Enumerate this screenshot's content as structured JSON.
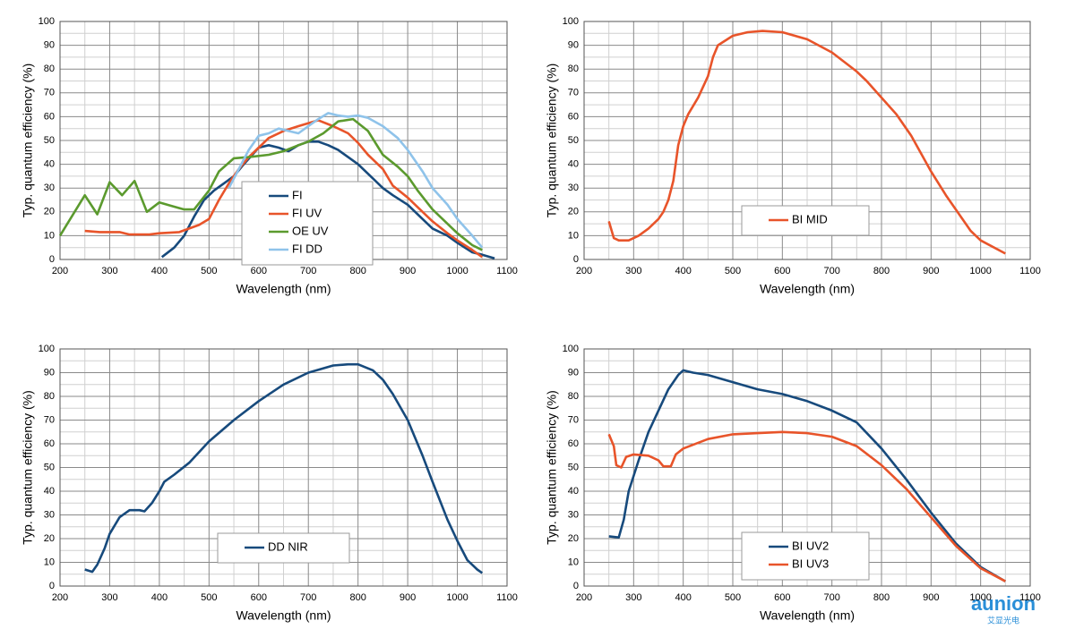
{
  "chart_data": [
    {
      "type": "line",
      "xlabel": "Wavelength (nm)",
      "ylabel": "Typ. quantum efficiency (%)",
      "xlim": [
        200,
        1100
      ],
      "ylim": [
        0,
        100
      ],
      "xticks": [
        200,
        300,
        400,
        500,
        600,
        700,
        800,
        900,
        1000,
        1100
      ],
      "yticks": [
        0,
        10,
        20,
        30,
        40,
        50,
        60,
        70,
        80,
        90,
        100
      ],
      "grid": true,
      "minor_grid": true,
      "legend": "lower right",
      "series": [
        {
          "name": "FI",
          "color": "#174a7c",
          "x": [
            405,
            430,
            450,
            470,
            490,
            510,
            530,
            550,
            570,
            600,
            620,
            640,
            660,
            680,
            700,
            720,
            740,
            760,
            780,
            800,
            820,
            850,
            870,
            900,
            930,
            950,
            980,
            1000,
            1030,
            1050,
            1075
          ],
          "values": [
            1,
            5,
            10,
            18,
            25,
            29,
            32,
            35,
            40,
            47,
            48,
            47,
            45.5,
            48,
            49.5,
            49.5,
            48,
            46,
            43,
            40,
            36,
            30,
            27,
            23,
            17,
            13,
            10,
            7,
            3,
            2,
            0.5
          ]
        },
        {
          "name": "FI UV",
          "color": "#e8542a",
          "x": [
            250,
            280,
            320,
            340,
            380,
            400,
            440,
            460,
            480,
            500,
            520,
            540,
            560,
            580,
            600,
            620,
            650,
            680,
            720,
            750,
            780,
            800,
            820,
            850,
            870,
            900,
            930,
            950,
            980,
            1000,
            1030,
            1050
          ],
          "values": [
            12,
            11.5,
            11.5,
            10.5,
            10.5,
            11,
            11.5,
            13,
            14.5,
            17,
            25,
            32,
            38,
            43,
            47,
            51,
            54,
            56,
            58.5,
            56,
            53,
            49,
            44,
            38,
            31,
            26,
            20,
            16,
            11,
            8,
            4,
            1
          ]
        },
        {
          "name": "OE UV",
          "color": "#5b9a2e",
          "x": [
            200,
            250,
            275,
            300,
            325,
            350,
            375,
            400,
            425,
            450,
            470,
            500,
            520,
            550,
            580,
            620,
            650,
            680,
            700,
            730,
            760,
            790,
            820,
            850,
            880,
            900,
            920,
            950,
            980,
            1000,
            1030,
            1050
          ],
          "values": [
            10,
            27,
            19,
            32.5,
            27,
            33,
            20,
            24,
            22.5,
            21,
            21,
            29,
            37,
            42.5,
            43,
            44,
            45.5,
            48,
            49.5,
            53,
            58,
            59,
            54,
            44,
            39,
            35,
            29,
            21,
            15,
            11,
            6,
            4
          ]
        },
        {
          "name": "FI DD",
          "color": "#8fc3ea",
          "x": [
            540,
            560,
            580,
            600,
            620,
            640,
            660,
            680,
            700,
            720,
            740,
            760,
            780,
            800,
            820,
            850,
            880,
            900,
            930,
            950,
            980,
            1000,
            1030,
            1050
          ],
          "values": [
            30,
            38,
            46,
            52,
            53,
            55,
            54,
            53,
            56,
            59,
            61.5,
            60.5,
            60,
            60.5,
            59.5,
            56,
            51,
            46,
            37,
            30,
            23,
            17,
            10,
            5
          ]
        }
      ]
    },
    {
      "type": "line",
      "xlabel": "Wavelength (nm)",
      "ylabel": "Typ. quantum efficiency (%)",
      "xlim": [
        200,
        1100
      ],
      "ylim": [
        0,
        100
      ],
      "xticks": [
        200,
        300,
        400,
        500,
        600,
        700,
        800,
        900,
        1000,
        1100
      ],
      "yticks": [
        0,
        10,
        20,
        30,
        40,
        50,
        60,
        70,
        80,
        90,
        100
      ],
      "grid": true,
      "minor_grid": true,
      "legend": "lower right",
      "series": [
        {
          "name": "BI MID",
          "color": "#e8542a",
          "x": [
            250,
            260,
            270,
            290,
            310,
            330,
            350,
            360,
            370,
            380,
            390,
            400,
            410,
            430,
            450,
            460,
            470,
            500,
            530,
            560,
            600,
            650,
            700,
            750,
            770,
            800,
            830,
            860,
            900,
            930,
            960,
            980,
            1000,
            1050
          ],
          "values": [
            16,
            9,
            8,
            8,
            10,
            13,
            17,
            20,
            25,
            33,
            48,
            56,
            61,
            68,
            77,
            85,
            90,
            94,
            95.5,
            96,
            95.5,
            92.5,
            87,
            79,
            75,
            68,
            61,
            52,
            37,
            27,
            18,
            12,
            8,
            2.5
          ]
        }
      ]
    },
    {
      "type": "line",
      "xlabel": "Wavelength (nm)",
      "ylabel": "Typ. quantum efficiency (%)",
      "xlim": [
        200,
        1100
      ],
      "ylim": [
        0,
        100
      ],
      "xticks": [
        200,
        300,
        400,
        500,
        600,
        700,
        800,
        900,
        1000,
        1100
      ],
      "yticks": [
        0,
        10,
        20,
        30,
        40,
        50,
        60,
        70,
        80,
        90,
        100
      ],
      "grid": true,
      "minor_grid": true,
      "legend": "lower center",
      "series": [
        {
          "name": "DD NIR",
          "color": "#174a7c",
          "x": [
            250,
            265,
            275,
            290,
            300,
            320,
            340,
            360,
            370,
            385,
            400,
            410,
            430,
            460,
            500,
            550,
            600,
            650,
            700,
            750,
            780,
            800,
            830,
            850,
            870,
            900,
            930,
            950,
            980,
            1000,
            1020,
            1040,
            1050
          ],
          "values": [
            7,
            6,
            9,
            16,
            22,
            29,
            32,
            32,
            31.5,
            35,
            40,
            44,
            47,
            52,
            61,
            70,
            78,
            85,
            90,
            93,
            93.5,
            93.5,
            91,
            87,
            81,
            70,
            55,
            44,
            28,
            19,
            11,
            7,
            5.5
          ]
        }
      ]
    },
    {
      "type": "line",
      "xlabel": "Wavelength (nm)",
      "ylabel": "Typ. quantum efficiency (%)",
      "xlim": [
        200,
        1100
      ],
      "ylim": [
        0,
        100
      ],
      "xticks": [
        200,
        300,
        400,
        500,
        600,
        700,
        800,
        900,
        1000,
        1100
      ],
      "yticks": [
        0,
        10,
        20,
        30,
        40,
        50,
        60,
        70,
        80,
        90,
        100
      ],
      "grid": true,
      "minor_grid": true,
      "legend": "lower right",
      "series": [
        {
          "name": "BI UV2",
          "color": "#174a7c",
          "x": [
            250,
            270,
            280,
            290,
            310,
            330,
            350,
            370,
            390,
            400,
            420,
            450,
            500,
            550,
            600,
            650,
            700,
            750,
            800,
            850,
            900,
            950,
            1000,
            1050
          ],
          "values": [
            21,
            20.5,
            28,
            40,
            53,
            65,
            74,
            83,
            89,
            91,
            90,
            89,
            86,
            83,
            81,
            78,
            74,
            69,
            58,
            45,
            31,
            18,
            8,
            2
          ]
        },
        {
          "name": "BI UV3",
          "color": "#e8542a",
          "x": [
            250,
            260,
            265,
            275,
            285,
            300,
            330,
            350,
            360,
            375,
            385,
            400,
            450,
            500,
            550,
            600,
            650,
            700,
            750,
            800,
            850,
            900,
            950,
            1000,
            1050
          ],
          "values": [
            64,
            59,
            51,
            50,
            54.5,
            55.5,
            55,
            53,
            50.5,
            50.5,
            55.5,
            58,
            62,
            64,
            64.5,
            65,
            64.5,
            63,
            59,
            51,
            41,
            29,
            17,
            7.5,
            2
          ]
        }
      ]
    }
  ],
  "watermark": {
    "brand": "aunion",
    "sub": "艾显光电"
  }
}
